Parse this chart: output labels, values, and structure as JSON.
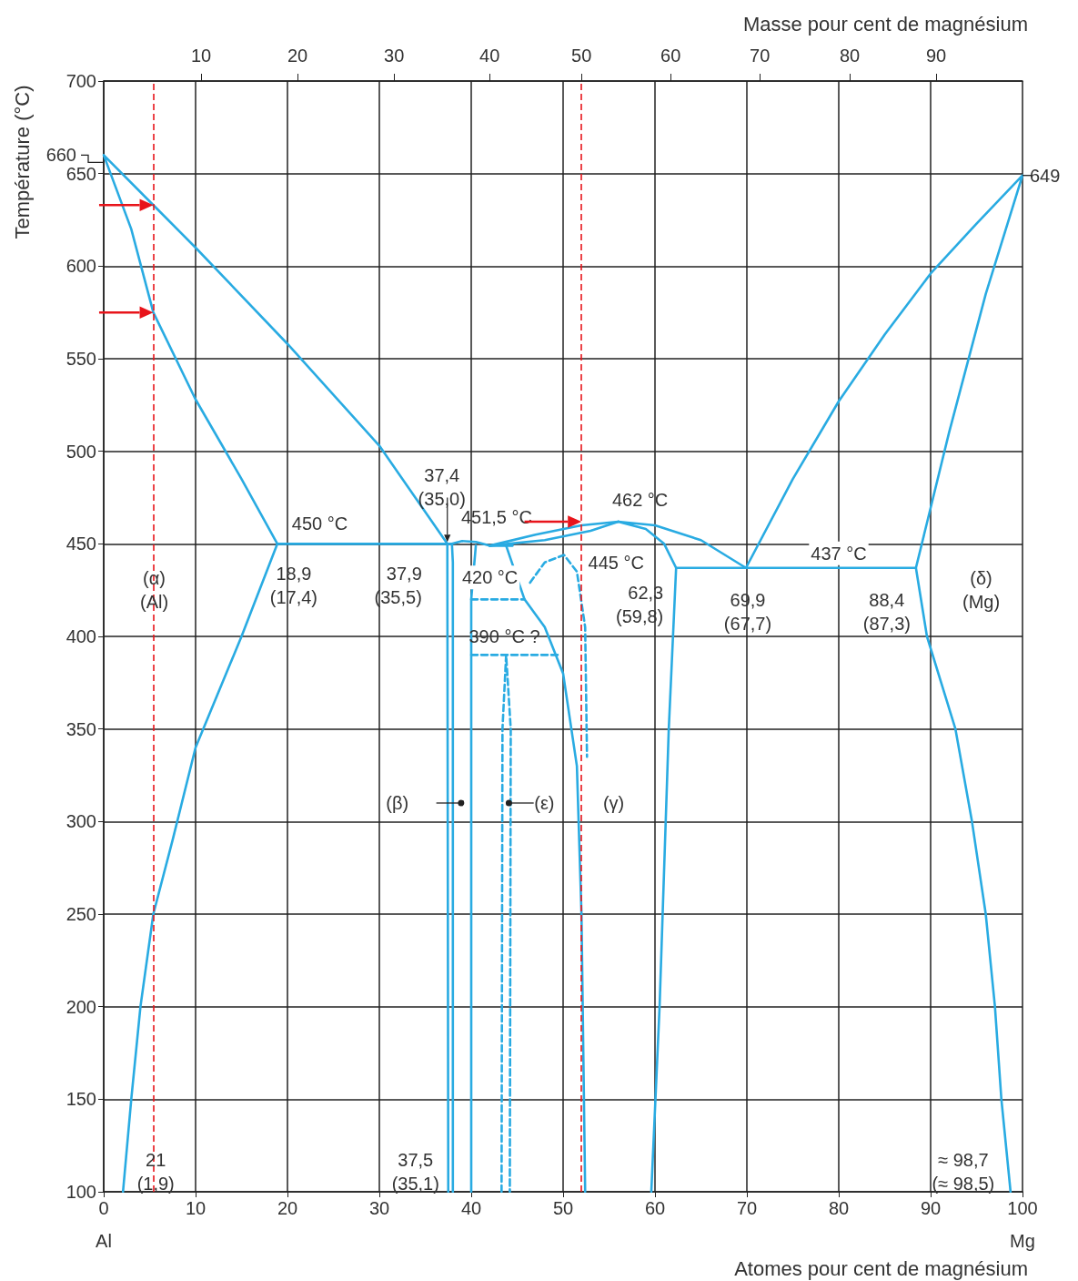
{
  "chart_data": {
    "type": "line",
    "xlabel": "Atomes pour cent de magnésium",
    "x2label": "Masse pour cent de magnésium",
    "ylabel": "Température (°C)",
    "xlim": [
      0,
      100
    ],
    "xticks": [
      0,
      10,
      20,
      30,
      40,
      50,
      60,
      70,
      80,
      90,
      100
    ],
    "ylim": [
      100,
      700
    ],
    "yticks": [
      100,
      150,
      200,
      250,
      300,
      350,
      400,
      450,
      500,
      550,
      600,
      650,
      700
    ],
    "grid": true,
    "series": [
      {
        "color": "#29abe2",
        "x": [
          18.9,
          15,
          10,
          5.4,
          3,
          0,
          5.4,
          10,
          20,
          30,
          37.4
        ],
        "values": [
          450,
          485,
          528,
          575,
          620,
          660,
          633,
          610,
          558,
          503,
          450
        ]
      },
      {
        "color": "#29abe2",
        "x": [
          18.9,
          15,
          10,
          7.5,
          5.4,
          4,
          3,
          2.1
        ],
        "values": [
          450,
          400,
          340,
          290,
          250,
          200,
          150,
          100
        ]
      },
      {
        "color": "#29abe2",
        "x": [
          18.9,
          37.9,
          39,
          40.5,
          42,
          44.5
        ],
        "values": [
          450,
          450,
          451.5,
          451,
          449,
          449
        ]
      },
      {
        "color": "#29abe2",
        "x": [
          37.4,
          37.5
        ],
        "values": [
          450,
          100
        ]
      },
      {
        "color": "#29abe2",
        "x": [
          37.9,
          38,
          38
        ],
        "values": [
          450,
          440,
          100
        ]
      },
      {
        "color": "#29abe2",
        "x": [
          40,
          40,
          40.5
        ],
        "values": [
          100,
          420,
          449
        ]
      },
      {
        "color": "#29abe2",
        "x": [
          43.8,
          45.8,
          48,
          50,
          51.5,
          52,
          52.4
        ],
        "values": [
          449,
          420,
          405,
          380,
          330,
          250,
          100
        ]
      },
      {
        "color": "#29abe2",
        "line_style": "dashed",
        "x": [
          40,
          45.8
        ],
        "values": [
          420,
          420
        ]
      },
      {
        "color": "#29abe2",
        "line_style": "dashed",
        "x": [
          40,
          49.6
        ],
        "values": [
          390,
          390
        ]
      },
      {
        "color": "#29abe2",
        "line_style": "dashed",
        "x": [
          43.3,
          43.4,
          43.8,
          44.3,
          44.2
        ],
        "values": [
          100,
          350,
          390,
          350,
          100
        ]
      },
      {
        "color": "#29abe2",
        "line_style": "dashed",
        "x": [
          46.4,
          48,
          50.1,
          51.5,
          52.4,
          52.6
        ],
        "values": [
          429,
          440,
          444,
          435,
          405,
          335
        ]
      },
      {
        "color": "#29abe2",
        "x": [
          42,
          47,
          52,
          56
        ],
        "values": [
          449,
          455,
          460,
          462
        ]
      },
      {
        "color": "#29abe2",
        "x": [
          42,
          48,
          53,
          56
        ],
        "values": [
          449,
          452,
          457,
          462
        ]
      },
      {
        "color": "#29abe2",
        "x": [
          59.6,
          60.5,
          61.5,
          62.3,
          61,
          59,
          56,
          60,
          65,
          69.9,
          75,
          80,
          85,
          90,
          95,
          100,
          96,
          92,
          88.4,
          89.6,
          92.7,
          94.5,
          96,
          97,
          97.7,
          98.7
        ],
        "values": [
          100,
          200,
          350,
          437,
          450,
          458,
          462,
          460,
          452,
          437,
          485,
          527,
          563,
          596,
          623,
          649,
          585,
          510,
          437,
          400,
          350,
          300,
          250,
          200,
          150,
          100
        ]
      },
      {
        "color": "#29abe2",
        "x": [
          62.3,
          88.4
        ],
        "values": [
          437,
          437
        ]
      }
    ],
    "ref_lines": [
      {
        "axis": "x",
        "value": 5.4,
        "color": "#e8141b",
        "line_style": "dashed"
      },
      {
        "axis": "x",
        "value": 52,
        "color": "#e8141b",
        "line_style": "dashed"
      }
    ],
    "annotations": [
      {
        "text": "660",
        "x": 0,
        "y": 660
      },
      {
        "text": "649",
        "x": 100,
        "y": 649
      },
      {
        "text": "37,4\n(35,0)",
        "x": 37.4,
        "y": 450
      },
      {
        "text": "451,5 °C",
        "x": 39,
        "y": 451.5
      },
      {
        "text": "462 °C",
        "x": 56,
        "y": 462
      },
      {
        "text": "450 °C",
        "x": 25,
        "y": 450
      },
      {
        "text": "445 °C",
        "x": 52,
        "y": 445
      },
      {
        "text": "437 °C",
        "x": 80,
        "y": 437
      },
      {
        "text": "18,9\n(17,4)",
        "x": 18.9,
        "y": 450
      },
      {
        "text": "37,9\n(35,5)",
        "x": 37.9,
        "y": 450
      },
      {
        "text": "420 °C",
        "x": 45.8,
        "y": 420
      },
      {
        "text": "62,3\n(59,8)",
        "x": 62.3,
        "y": 437
      },
      {
        "text": "69,9\n(67,7)",
        "x": 69.9,
        "y": 437
      },
      {
        "text": "88,4\n(87,3)",
        "x": 88.4,
        "y": 437
      },
      {
        "text": "(α)\n(Al)",
        "x": 5.5,
        "y": 425
      },
      "(δ)\n(Mg)",
      {
        "text": "390 °C ?",
        "x": 45,
        "y": 390
      },
      {
        "text": "(β)",
        "x": 37.5,
        "y": 310
      },
      {
        "text": "(ε)",
        "x": 43.8,
        "y": 310
      },
      "(γ)",
      {
        "text": "21\n(1,9)",
        "x": 2.1,
        "y": 100
      },
      {
        "text": "37,5\n(35,1)",
        "x": 37.5,
        "y": 100
      },
      {
        "text": "≈ 98,7\n(≈ 98,5)",
        "x": 98.7,
        "y": 100
      },
      "Al",
      "Mg",
      "10",
      "20",
      "30",
      "40",
      "50",
      "60",
      "70",
      "80",
      "90"
    ]
  }
}
